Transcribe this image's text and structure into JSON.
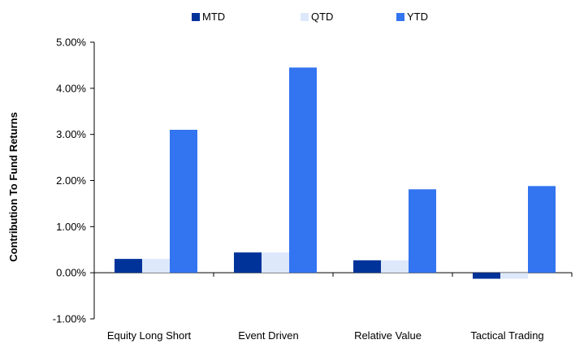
{
  "chart_data": {
    "type": "bar",
    "categories": [
      "Equity Long Short",
      "Event Driven",
      "Relative Value",
      "Tactical Trading"
    ],
    "series": [
      {
        "name": "MTD",
        "color": "#003399",
        "values": [
          0.3,
          0.44,
          0.27,
          -0.13
        ]
      },
      {
        "name": "QTD",
        "color": "#DDE8FB",
        "values": [
          0.3,
          0.44,
          0.27,
          -0.13
        ]
      },
      {
        "name": "YTD",
        "color": "#3374F0",
        "values": [
          3.1,
          4.45,
          1.81,
          1.88
        ]
      }
    ],
    "ylabel": "Contribution To Fund Returns",
    "ylim": [
      -1.0,
      5.0
    ],
    "yticks": [
      5.0,
      4.0,
      3.0,
      2.0,
      1.0,
      0.0,
      -1.0
    ],
    "ytick_labels": [
      "5.00%",
      "4.00%",
      "3.00%",
      "2.00%",
      "1.00%",
      "0.00%",
      "-1.00%"
    ],
    "legend_position": "top",
    "grid": false
  }
}
